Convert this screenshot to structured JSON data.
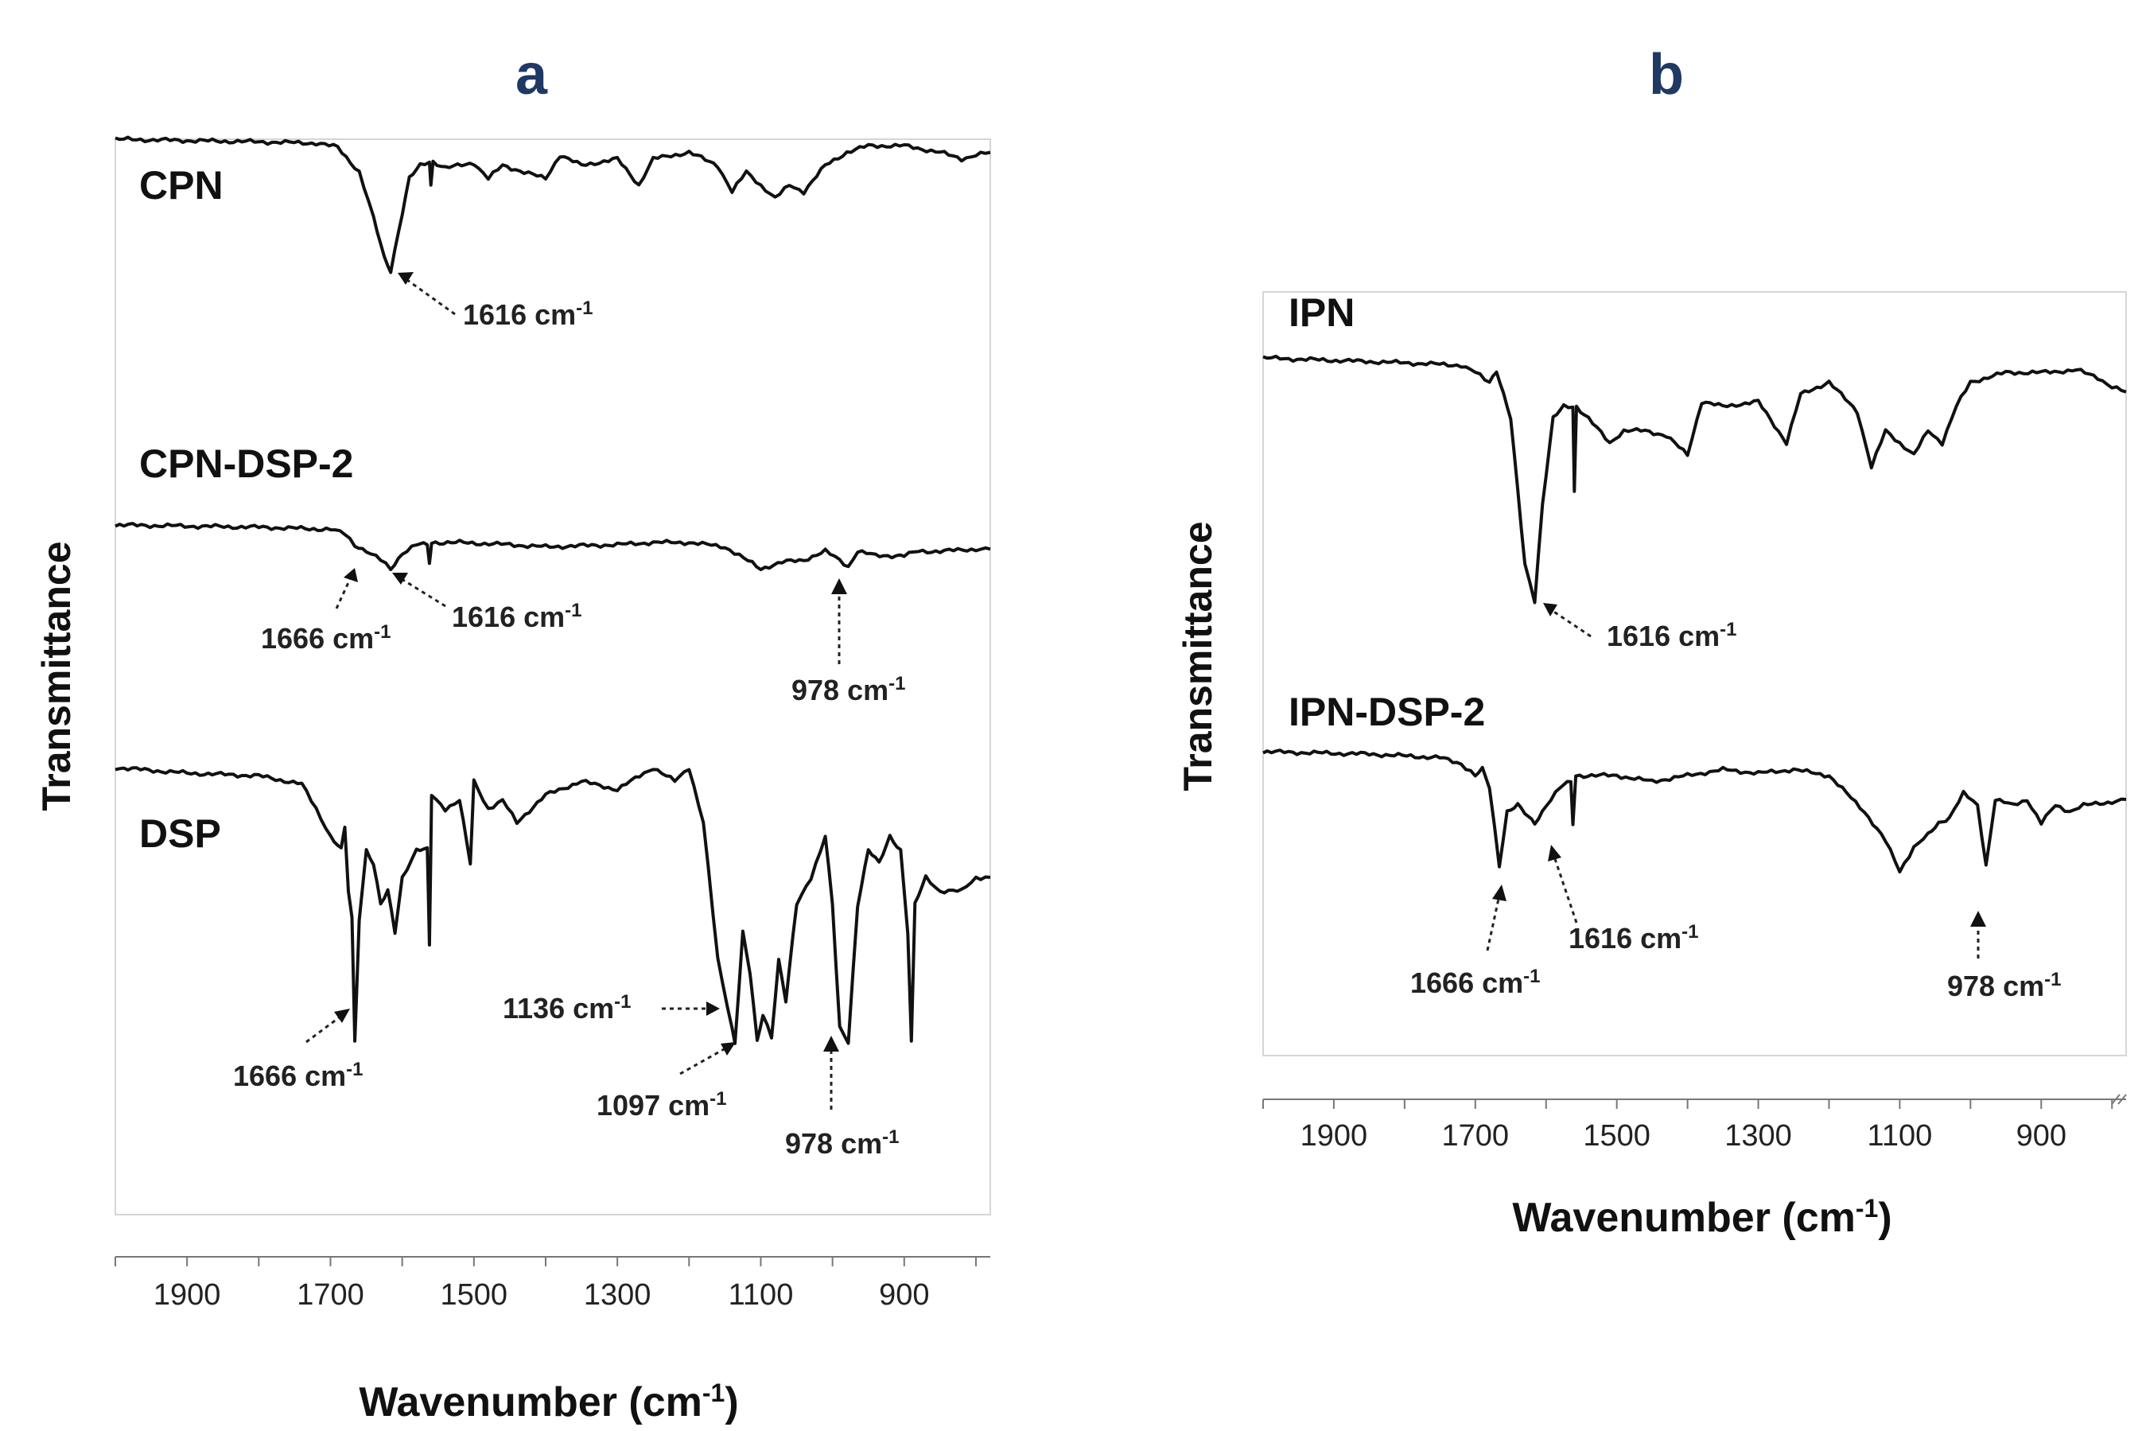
{
  "chart_data": [
    {
      "type": "line",
      "panel": "a",
      "xlabel": "Wavenumber (cm",
      "xlabel_sup": "-1",
      "xlabel_end": ")",
      "ylabel": "Transmittance",
      "xlim": [
        2000,
        780
      ],
      "x_reversed": true,
      "xticks": [
        "1900",
        "1700",
        "1500",
        "1300",
        "1100",
        "900"
      ],
      "series": [
        {
          "name": "CPN",
          "points": [
            [
              2000,
              0
            ],
            [
              1900,
              0.01
            ],
            [
              1800,
              0.02
            ],
            [
              1720,
              0.03
            ],
            [
              1690,
              0.06
            ],
            [
              1660,
              0.25
            ],
            [
              1640,
              0.6
            ],
            [
              1625,
              0.9
            ],
            [
              1616,
              1.0
            ],
            [
              1605,
              0.7
            ],
            [
              1590,
              0.3
            ],
            [
              1575,
              0.2
            ],
            [
              1562,
              0.17
            ],
            [
              1560,
              0.35
            ],
            [
              1557,
              0.17
            ],
            [
              1540,
              0.22
            ],
            [
              1500,
              0.18
            ],
            [
              1480,
              0.3
            ],
            [
              1460,
              0.2
            ],
            [
              1430,
              0.25
            ],
            [
              1400,
              0.3
            ],
            [
              1380,
              0.12
            ],
            [
              1350,
              0.2
            ],
            [
              1300,
              0.15
            ],
            [
              1270,
              0.35
            ],
            [
              1250,
              0.15
            ],
            [
              1200,
              0.1
            ],
            [
              1160,
              0.2
            ],
            [
              1140,
              0.4
            ],
            [
              1120,
              0.25
            ],
            [
              1100,
              0.35
            ],
            [
              1080,
              0.45
            ],
            [
              1060,
              0.35
            ],
            [
              1040,
              0.4
            ],
            [
              1010,
              0.2
            ],
            [
              980,
              0.1
            ],
            [
              950,
              0.05
            ],
            [
              900,
              0.05
            ],
            [
              850,
              0.1
            ],
            [
              820,
              0.15
            ],
            [
              800,
              0.12
            ],
            [
              780,
              0.1
            ]
          ],
          "annotations": [
            {
              "label": "1616 cm",
              "sup": "-1",
              "x": 1616
            }
          ]
        },
        {
          "name": "CPN-DSP-2",
          "points": [
            [
              2000,
              0
            ],
            [
              1800,
              0.05
            ],
            [
              1700,
              0.1
            ],
            [
              1680,
              0.2
            ],
            [
              1666,
              0.45
            ],
            [
              1650,
              0.6
            ],
            [
              1630,
              0.8
            ],
            [
              1616,
              1.0
            ],
            [
              1600,
              0.65
            ],
            [
              1580,
              0.45
            ],
            [
              1565,
              0.45
            ],
            [
              1562,
              0.85
            ],
            [
              1559,
              0.4
            ],
            [
              1520,
              0.4
            ],
            [
              1450,
              0.45
            ],
            [
              1400,
              0.5
            ],
            [
              1300,
              0.45
            ],
            [
              1250,
              0.4
            ],
            [
              1200,
              0.4
            ],
            [
              1150,
              0.5
            ],
            [
              1130,
              0.7
            ],
            [
              1100,
              1.0
            ],
            [
              1070,
              0.85
            ],
            [
              1040,
              0.8
            ],
            [
              1010,
              0.6
            ],
            [
              990,
              0.8
            ],
            [
              978,
              0.95
            ],
            [
              965,
              0.6
            ],
            [
              940,
              0.7
            ],
            [
              900,
              0.7
            ],
            [
              880,
              0.6
            ],
            [
              850,
              0.6
            ],
            [
              800,
              0.55
            ],
            [
              780,
              0.55
            ]
          ],
          "annotations": [
            {
              "label": "1666 cm",
              "sup": "-1",
              "x": 1666
            },
            {
              "label": "1616 cm",
              "sup": "-1",
              "x": 1616
            },
            {
              "label": "978 cm",
              "sup": "-1",
              "x": 978
            }
          ]
        },
        {
          "name": "DSP",
          "points": [
            [
              2000,
              0
            ],
            [
              1900,
              0.02
            ],
            [
              1800,
              0.03
            ],
            [
              1740,
              0.06
            ],
            [
              1720,
              0.15
            ],
            [
              1700,
              0.25
            ],
            [
              1685,
              0.3
            ],
            [
              1680,
              0.22
            ],
            [
              1675,
              0.45
            ],
            [
              1670,
              0.55
            ],
            [
              1666,
              1.0
            ],
            [
              1660,
              0.55
            ],
            [
              1650,
              0.3
            ],
            [
              1640,
              0.35
            ],
            [
              1630,
              0.5
            ],
            [
              1620,
              0.45
            ],
            [
              1610,
              0.6
            ],
            [
              1600,
              0.4
            ],
            [
              1580,
              0.3
            ],
            [
              1565,
              0.3
            ],
            [
              1562,
              0.65
            ],
            [
              1559,
              0.1
            ],
            [
              1540,
              0.15
            ],
            [
              1520,
              0.12
            ],
            [
              1505,
              0.35
            ],
            [
              1500,
              0.05
            ],
            [
              1480,
              0.15
            ],
            [
              1460,
              0.12
            ],
            [
              1440,
              0.2
            ],
            [
              1400,
              0.1
            ],
            [
              1350,
              0.05
            ],
            [
              1300,
              0.08
            ],
            [
              1250,
              0.0
            ],
            [
              1220,
              0.05
            ],
            [
              1200,
              0.0
            ],
            [
              1180,
              0.2
            ],
            [
              1160,
              0.7
            ],
            [
              1140,
              0.95
            ],
            [
              1136,
              1.0
            ],
            [
              1125,
              0.6
            ],
            [
              1115,
              0.75
            ],
            [
              1105,
              1.0
            ],
            [
              1097,
              0.9
            ],
            [
              1085,
              0.98
            ],
            [
              1075,
              0.7
            ],
            [
              1065,
              0.85
            ],
            [
              1050,
              0.5
            ],
            [
              1030,
              0.4
            ],
            [
              1010,
              0.25
            ],
            [
              1000,
              0.5
            ],
            [
              990,
              0.95
            ],
            [
              978,
              1.0
            ],
            [
              965,
              0.5
            ],
            [
              950,
              0.3
            ],
            [
              935,
              0.35
            ],
            [
              920,
              0.25
            ],
            [
              905,
              0.3
            ],
            [
              895,
              0.6
            ],
            [
              890,
              1.0
            ],
            [
              885,
              0.5
            ],
            [
              870,
              0.4
            ],
            [
              850,
              0.45
            ],
            [
              820,
              0.45
            ],
            [
              800,
              0.4
            ],
            [
              780,
              0.4
            ]
          ],
          "annotations": [
            {
              "label": "1666 cm",
              "sup": "-1",
              "x": 1666
            },
            {
              "label": "1136 cm",
              "sup": "-1",
              "x": 1136
            },
            {
              "label": "1097 cm",
              "sup": "-1",
              "x": 1097
            },
            {
              "label": "978 cm",
              "sup": "-1",
              "x": 978
            }
          ]
        }
      ]
    },
    {
      "type": "line",
      "panel": "b",
      "xlabel": "Wavenumber (cm",
      "xlabel_sup": "-1",
      "xlabel_end": ")",
      "ylabel": "Transmittance",
      "xlim": [
        2000,
        780
      ],
      "x_reversed": true,
      "xticks": [
        "1900",
        "1700",
        "1500",
        "1300",
        "1100",
        "900"
      ],
      "series": [
        {
          "name": "IPN",
          "points": [
            [
              2000,
              0
            ],
            [
              1800,
              0.02
            ],
            [
              1720,
              0.03
            ],
            [
              1700,
              0.06
            ],
            [
              1680,
              0.1
            ],
            [
              1670,
              0.05
            ],
            [
              1660,
              0.15
            ],
            [
              1650,
              0.25
            ],
            [
              1640,
              0.55
            ],
            [
              1630,
              0.85
            ],
            [
              1616,
              1.0
            ],
            [
              1605,
              0.6
            ],
            [
              1590,
              0.25
            ],
            [
              1575,
              0.2
            ],
            [
              1562,
              0.2
            ],
            [
              1560,
              0.55
            ],
            [
              1557,
              0.2
            ],
            [
              1540,
              0.25
            ],
            [
              1510,
              0.35
            ],
            [
              1490,
              0.3
            ],
            [
              1460,
              0.3
            ],
            [
              1430,
              0.32
            ],
            [
              1400,
              0.4
            ],
            [
              1380,
              0.18
            ],
            [
              1350,
              0.2
            ],
            [
              1300,
              0.18
            ],
            [
              1260,
              0.35
            ],
            [
              1240,
              0.15
            ],
            [
              1200,
              0.1
            ],
            [
              1160,
              0.22
            ],
            [
              1140,
              0.45
            ],
            [
              1120,
              0.3
            ],
            [
              1100,
              0.35
            ],
            [
              1080,
              0.4
            ],
            [
              1060,
              0.3
            ],
            [
              1040,
              0.35
            ],
            [
              1020,
              0.2
            ],
            [
              1000,
              0.1
            ],
            [
              950,
              0.06
            ],
            [
              900,
              0.06
            ],
            [
              850,
              0.05
            ],
            [
              820,
              0.08
            ],
            [
              800,
              0.12
            ],
            [
              780,
              0.14
            ]
          ],
          "annotations": [
            {
              "label": "1616 cm",
              "sup": "-1",
              "x": 1616
            }
          ]
        },
        {
          "name": "IPN-DSP-2",
          "points": [
            [
              2000,
              0
            ],
            [
              1850,
              0.02
            ],
            [
              1750,
              0.05
            ],
            [
              1720,
              0.1
            ],
            [
              1700,
              0.2
            ],
            [
              1690,
              0.15
            ],
            [
              1680,
              0.3
            ],
            [
              1666,
              0.95
            ],
            [
              1655,
              0.5
            ],
            [
              1640,
              0.45
            ],
            [
              1625,
              0.55
            ],
            [
              1616,
              0.6
            ],
            [
              1600,
              0.45
            ],
            [
              1580,
              0.3
            ],
            [
              1565,
              0.25
            ],
            [
              1562,
              0.6
            ],
            [
              1558,
              0.2
            ],
            [
              1530,
              0.2
            ],
            [
              1500,
              0.2
            ],
            [
              1450,
              0.25
            ],
            [
              1400,
              0.2
            ],
            [
              1350,
              0.15
            ],
            [
              1300,
              0.18
            ],
            [
              1250,
              0.15
            ],
            [
              1200,
              0.2
            ],
            [
              1150,
              0.5
            ],
            [
              1120,
              0.75
            ],
            [
              1100,
              1.0
            ],
            [
              1080,
              0.8
            ],
            [
              1060,
              0.7
            ],
            [
              1045,
              0.6
            ],
            [
              1030,
              0.55
            ],
            [
              1010,
              0.35
            ],
            [
              990,
              0.45
            ],
            [
              978,
              0.95
            ],
            [
              965,
              0.4
            ],
            [
              940,
              0.45
            ],
            [
              920,
              0.4
            ],
            [
              900,
              0.6
            ],
            [
              880,
              0.45
            ],
            [
              860,
              0.5
            ],
            [
              840,
              0.45
            ],
            [
              800,
              0.42
            ],
            [
              780,
              0.4
            ]
          ],
          "annotations": [
            {
              "label": "1666 cm",
              "sup": "-1",
              "x": 1666
            },
            {
              "label": "1616 cm",
              "sup": "-1",
              "x": 1616
            },
            {
              "label": "978 cm",
              "sup": "-1",
              "x": 978
            }
          ]
        }
      ]
    }
  ]
}
